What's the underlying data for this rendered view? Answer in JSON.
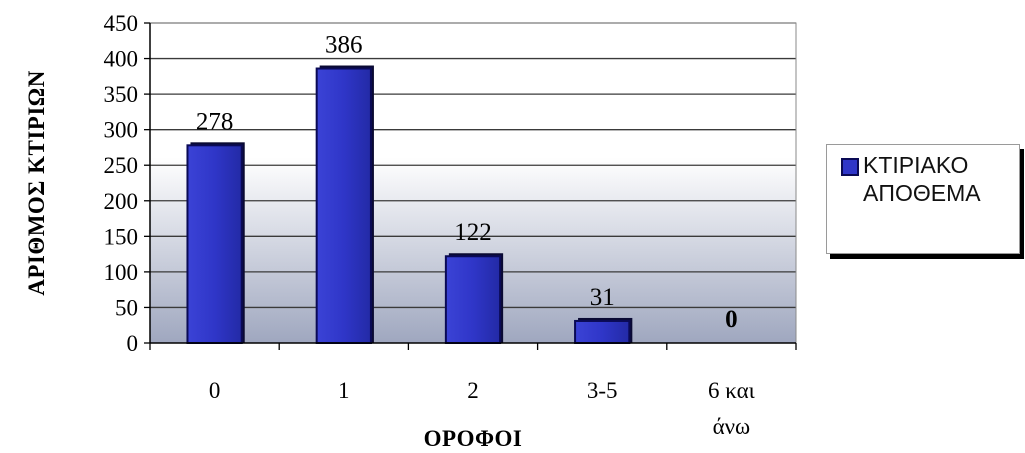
{
  "chart_data": {
    "type": "bar",
    "categories": [
      "0",
      "1",
      "2",
      "3-5",
      "6 και άνω"
    ],
    "category_lines": [
      [
        "0"
      ],
      [
        "1"
      ],
      [
        "2"
      ],
      [
        "3-5"
      ],
      [
        "6 και",
        "άνω"
      ]
    ],
    "values": [
      278,
      386,
      122,
      31,
      0
    ],
    "series": [
      {
        "name": "ΚΤΙΡΙΑΚΟ ΑΠΟΘΕΜΑ",
        "values": [
          278,
          386,
          122,
          31,
          0
        ]
      }
    ],
    "xlabel": "ΟΡΟΦΟΙ",
    "ylabel": "ΑΡΙΘΜΟΣ ΚΤΙΡΙΩΝ",
    "ylim": [
      0,
      450
    ],
    "yticks": [
      0,
      50,
      100,
      150,
      200,
      250,
      300,
      350,
      400,
      450
    ],
    "grid": true,
    "legend_position": "right",
    "colors": {
      "bar": "#2f36c8",
      "bar_edge": "#0a0a55",
      "plot_top": "#ffffff",
      "plot_bottom": "#9fa7bf",
      "grid": "#3a3a3a"
    }
  },
  "legend": {
    "lines": [
      "ΚΤΙΡΙΑΚΟ",
      "ΑΠΟΘΕΜΑ"
    ]
  }
}
